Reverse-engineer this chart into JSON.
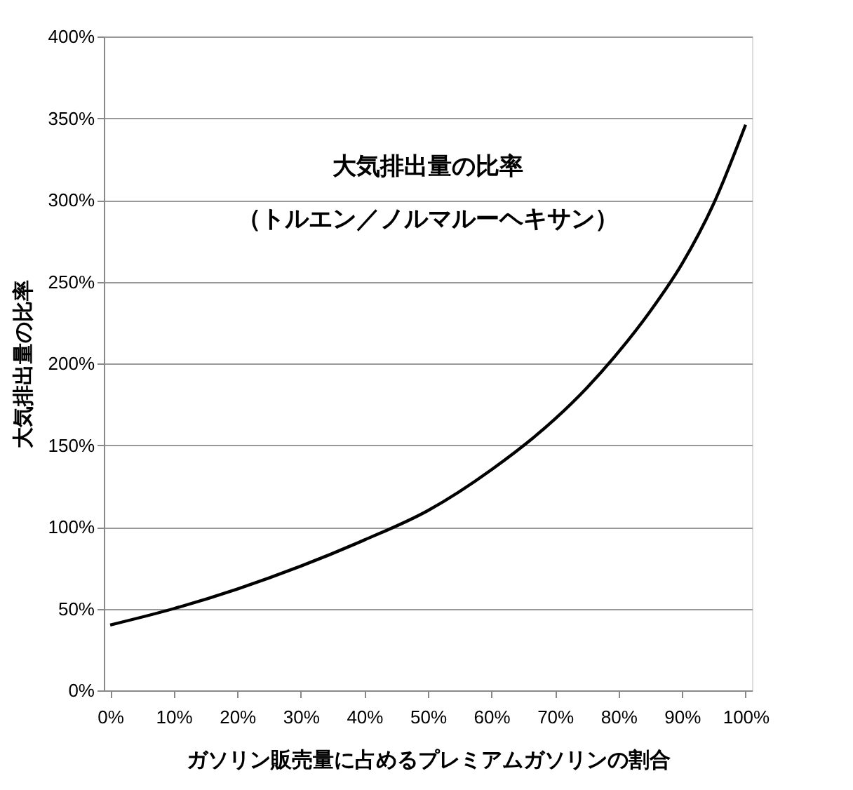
{
  "chart_data": {
    "type": "line",
    "title": "大気排出量の比率",
    "subtitle": "（トルエン／ノルマルーヘキサン）",
    "xlabel": "ガソリン販売量に占めるプレミアムガソリンの割合",
    "ylabel": "大気排出量の比率",
    "x": [
      0,
      10,
      20,
      30,
      40,
      50,
      60,
      70,
      75,
      80,
      85,
      90,
      95,
      100
    ],
    "series": [
      {
        "color": "#000000",
        "values": [
          40,
          50,
          62,
          76,
          92,
          110,
          135,
          166,
          185,
          207,
          232,
          261,
          298,
          346
        ]
      }
    ],
    "xlim": [
      -1,
      101
    ],
    "ylim": [
      0,
      400
    ],
    "xticks": [
      {
        "value": 0,
        "label": "0%"
      },
      {
        "value": 10,
        "label": "10%"
      },
      {
        "value": 20,
        "label": "20%"
      },
      {
        "value": 30,
        "label": "30%"
      },
      {
        "value": 40,
        "label": "40%"
      },
      {
        "value": 50,
        "label": "50%"
      },
      {
        "value": 60,
        "label": "60%"
      },
      {
        "value": 70,
        "label": "70%"
      },
      {
        "value": 80,
        "label": "80%"
      },
      {
        "value": 90,
        "label": "90%"
      },
      {
        "value": 100,
        "label": "100%"
      }
    ],
    "yticks": [
      {
        "value": 0,
        "label": "0%"
      },
      {
        "value": 50,
        "label": "50%"
      },
      {
        "value": 100,
        "label": "100%"
      },
      {
        "value": 150,
        "label": "150%"
      },
      {
        "value": 200,
        "label": "200%"
      },
      {
        "value": 250,
        "label": "250%"
      },
      {
        "value": 300,
        "label": "300%"
      },
      {
        "value": 350,
        "label": "350%"
      },
      {
        "value": 400,
        "label": "400%"
      }
    ],
    "grid": "y",
    "marker": "none",
    "line_style": "solid"
  }
}
